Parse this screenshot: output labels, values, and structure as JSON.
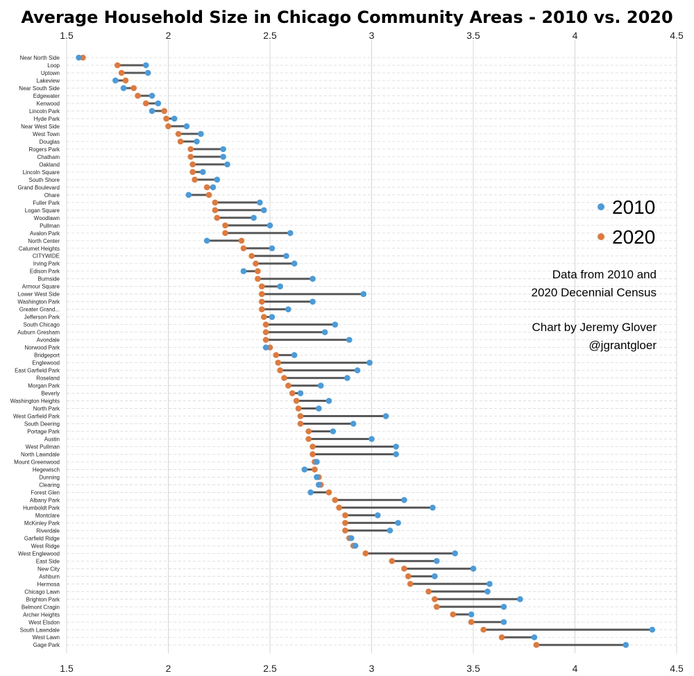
{
  "chart_data": {
    "type": "dumbbell",
    "title": "Average Household Size in Chicago Community Areas - 2010 vs. 2020",
    "xlim": [
      1.5,
      4.5
    ],
    "xticks": [
      "1.5",
      "2",
      "2.5",
      "3",
      "3.5",
      "4",
      "4.5"
    ],
    "grid": true,
    "colors": {
      "2010": "#4a9bd9",
      "2020": "#e07a3c",
      "connector": "#595959"
    },
    "legend": {
      "placement": "right",
      "items": [
        "2010",
        "2020"
      ]
    },
    "notes": [
      "Data from 2010 and",
      "2020 Decennial Census",
      "",
      "Chart by Jeremy Glover",
      "@jgrantgloer"
    ],
    "categories": [
      "Near North Side",
      "Loop",
      "Uptown",
      "Lakeview",
      "Near South Side",
      "Edgewater",
      "Kenwood",
      "Lincoln Park",
      "Hyde Park",
      "Near West Side",
      "West Town",
      "Douglas",
      "Rogers Park",
      "Chatham",
      "Oakland",
      "Lincoln Square",
      "South Shore",
      "Grand Boulevard",
      "Ohare",
      "Fuller Park",
      "Logan Square",
      "Woodlawn",
      "Pullman",
      "Avalon Park",
      "North Center",
      "Calumet Heights",
      "CITYWIDE",
      "Irving Park",
      "Edison Park",
      "Burnside",
      "Armour Square",
      "Lower West Side",
      "Washington Park",
      "Greater Grand...",
      "Jefferson Park",
      "South Chicago",
      "Auburn Gresham",
      "Avondale",
      "Norwood Park",
      "Bridgeport",
      "Englewood",
      "East Garfield Park",
      "Roseland",
      "Morgan Park",
      "Beverly",
      "Washington Heights",
      "North Park",
      "West Garfield Park",
      "South Deering",
      "Portage Park",
      "Austin",
      "West Pullman",
      "North Lawndale",
      "Mount Greenwood",
      "Hegewisch",
      "Dunning",
      "Clearing",
      "Forest Glen",
      "Albany Park",
      "Humboldt Park",
      "Montclare",
      "McKinley Park",
      "Riverdale",
      "Garfield Ridge",
      "West Ridge",
      "West Englewood",
      "East Side",
      "New City",
      "Ashburn",
      "Hermosa",
      "Chicago Lawn",
      "Brighton Park",
      "Belmont Cragin",
      "Archer Heights",
      "West Elsdon",
      "South Lawndale",
      "West Lawn",
      "Gage Park"
    ],
    "series": [
      {
        "name": "2010",
        "values": [
          1.56,
          1.89,
          1.9,
          1.74,
          1.78,
          1.92,
          1.95,
          1.92,
          2.03,
          2.09,
          2.16,
          2.14,
          2.27,
          2.27,
          2.29,
          2.17,
          2.24,
          2.22,
          2.1,
          2.45,
          2.47,
          2.42,
          2.5,
          2.6,
          2.19,
          2.51,
          2.58,
          2.62,
          2.37,
          2.71,
          2.55,
          2.96,
          2.71,
          2.59,
          2.51,
          2.82,
          2.77,
          2.89,
          2.48,
          2.62,
          2.99,
          2.93,
          2.88,
          2.75,
          2.65,
          2.79,
          2.74,
          3.07,
          2.91,
          2.81,
          3.0,
          3.12,
          3.12,
          2.73,
          2.67,
          2.73,
          2.74,
          2.7,
          3.16,
          3.3,
          3.03,
          3.13,
          3.09,
          2.9,
          2.92,
          3.41,
          3.32,
          3.5,
          3.31,
          3.58,
          3.57,
          3.73,
          3.65,
          3.49,
          3.65,
          4.38,
          3.8,
          4.25
        ]
      },
      {
        "name": "2020",
        "values": [
          1.58,
          1.75,
          1.77,
          1.79,
          1.83,
          1.85,
          1.89,
          1.98,
          1.99,
          2.0,
          2.05,
          2.06,
          2.11,
          2.11,
          2.12,
          2.12,
          2.13,
          2.19,
          2.2,
          2.23,
          2.23,
          2.24,
          2.28,
          2.28,
          2.36,
          2.37,
          2.41,
          2.43,
          2.44,
          2.44,
          2.46,
          2.46,
          2.46,
          2.46,
          2.47,
          2.48,
          2.48,
          2.48,
          2.5,
          2.53,
          2.54,
          2.55,
          2.57,
          2.59,
          2.61,
          2.63,
          2.64,
          2.65,
          2.65,
          2.69,
          2.69,
          2.71,
          2.71,
          2.72,
          2.72,
          2.74,
          2.75,
          2.79,
          2.82,
          2.84,
          2.87,
          2.87,
          2.87,
          2.89,
          2.91,
          2.97,
          3.1,
          3.16,
          3.18,
          3.19,
          3.28,
          3.31,
          3.32,
          3.4,
          3.49,
          3.55,
          3.64,
          3.81
        ]
      }
    ]
  }
}
